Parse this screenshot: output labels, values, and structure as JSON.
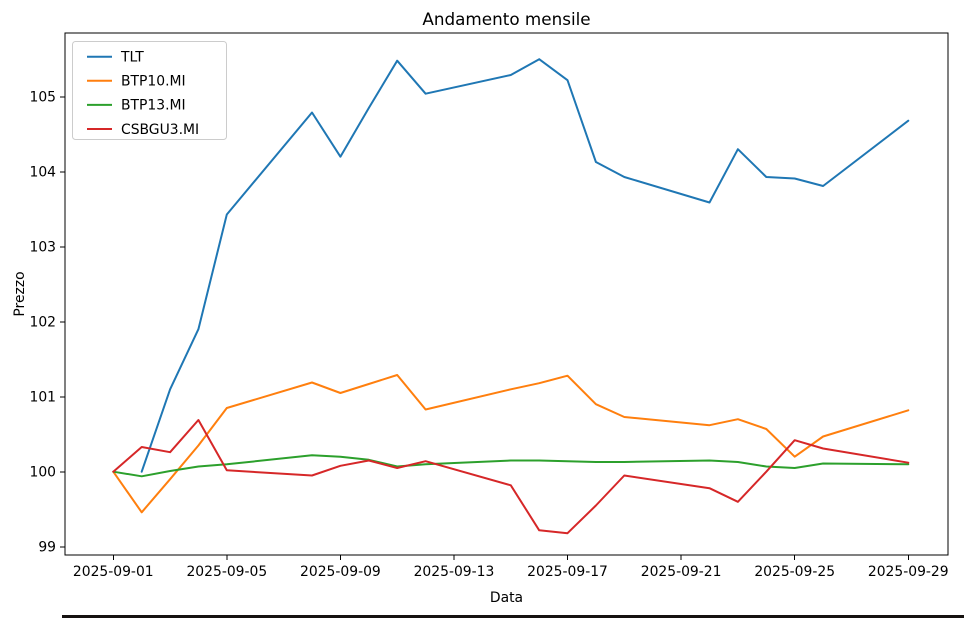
{
  "chart_data": {
    "type": "line",
    "title": "Andamento mensile",
    "xlabel": "Data",
    "ylabel": "Prezzo",
    "grid": false,
    "legend_position": "upper left",
    "background_color": "#ffffff",
    "axis_color": "#000000",
    "legend_border_color": "#cccccc",
    "x_dates": [
      "2025-09-01",
      "2025-09-02",
      "2025-09-03",
      "2025-09-04",
      "2025-09-05",
      "2025-09-08",
      "2025-09-09",
      "2025-09-10",
      "2025-09-11",
      "2025-09-12",
      "2025-09-15",
      "2025-09-16",
      "2025-09-17",
      "2025-09-18",
      "2025-09-19",
      "2025-09-22",
      "2025-09-23",
      "2025-09-24",
      "2025-09-25",
      "2025-09-26",
      "2025-09-29"
    ],
    "series": [
      {
        "name": "TLT",
        "color": "#1f77b4",
        "values": [
          null,
          100.0,
          101.1,
          101.9,
          103.43,
          104.79,
          104.2,
          104.85,
          105.48,
          105.04,
          105.29,
          105.5,
          105.22,
          104.13,
          103.93,
          103.59,
          104.3,
          103.93,
          103.91,
          103.81,
          104.68
        ]
      },
      {
        "name": "BTP10.MI",
        "color": "#ff7f0e",
        "values": [
          100.0,
          99.46,
          99.9,
          100.35,
          100.85,
          101.19,
          101.05,
          101.17,
          101.29,
          100.83,
          101.1,
          101.18,
          101.28,
          100.9,
          100.73,
          100.62,
          100.7,
          100.57,
          100.2,
          100.47,
          100.82
        ]
      },
      {
        "name": "BTP13.MI",
        "color": "#2ca02c",
        "values": [
          100.0,
          99.94,
          100.01,
          100.07,
          100.1,
          100.22,
          100.2,
          100.16,
          100.07,
          100.1,
          100.15,
          100.15,
          100.14,
          100.13,
          100.13,
          100.15,
          100.13,
          100.07,
          100.05,
          100.11,
          100.1
        ]
      },
      {
        "name": "CSBGU3.MI",
        "color": "#d62728",
        "values": [
          100.0,
          100.33,
          100.26,
          100.69,
          100.02,
          99.95,
          100.08,
          100.15,
          100.05,
          100.14,
          99.82,
          99.22,
          99.18,
          99.55,
          99.95,
          99.78,
          99.6,
          100.0,
          100.42,
          100.31,
          100.12
        ]
      }
    ],
    "yticks": [
      99,
      100,
      101,
      102,
      103,
      104,
      105
    ],
    "xticks": [
      "2025-09-01",
      "2025-09-05",
      "2025-09-09",
      "2025-09-13",
      "2025-09-17",
      "2025-09-21",
      "2025-09-25",
      "2025-09-29"
    ],
    "ylim": [
      98.89,
      105.85
    ],
    "xlim_days": [
      -1.7,
      29.4
    ]
  }
}
